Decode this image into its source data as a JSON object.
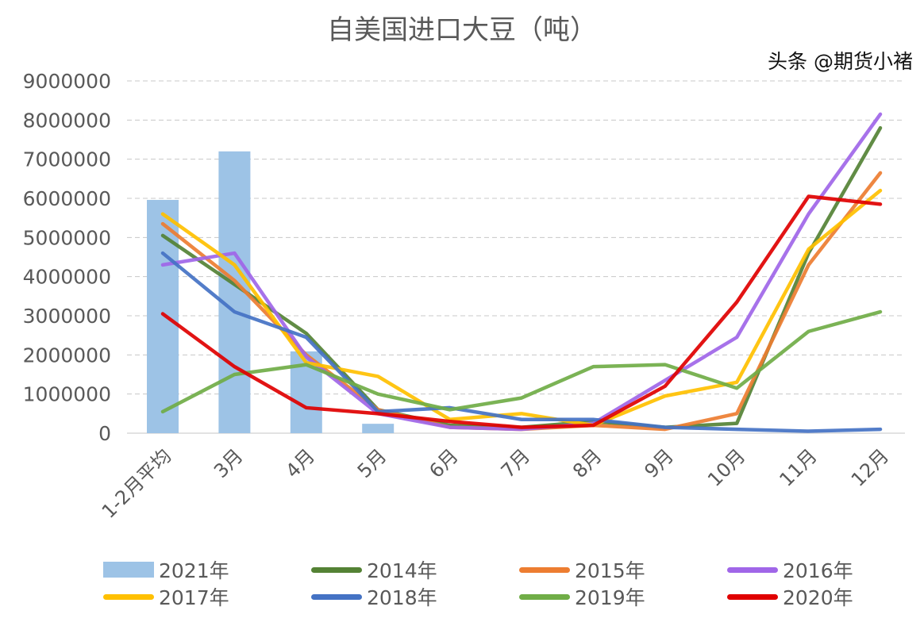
{
  "chart_data": {
    "type": "bar+line",
    "title": "自美国进口大豆（吨）",
    "categories": [
      "1-2月平均",
      "3月",
      "4月",
      "5月",
      "6月",
      "7月",
      "8月",
      "9月",
      "10月",
      "11月",
      "12月"
    ],
    "ylim": [
      0,
      9000000
    ],
    "yticks": [
      "0",
      "1000000",
      "2000000",
      "3000000",
      "4000000",
      "5000000",
      "6000000",
      "7000000",
      "8000000",
      "9000000"
    ],
    "grid": true,
    "legend_position": "bottom",
    "bar_series": {
      "name": "2021年",
      "color": "#9dc3e6",
      "values": [
        5960000,
        7200000,
        2090000,
        240000
      ]
    },
    "series": [
      {
        "name": "2014年",
        "color": "#548235",
        "values": [
          5050000,
          3800000,
          2550000,
          600000,
          200000,
          150000,
          300000,
          150000,
          250000,
          4600000,
          7800000
        ]
      },
      {
        "name": "2015年",
        "color": "#ed7d31",
        "values": [
          5350000,
          3900000,
          2000000,
          600000,
          150000,
          100000,
          200000,
          100000,
          500000,
          4300000,
          6650000
        ]
      },
      {
        "name": "2016年",
        "color": "#a066e8",
        "values": [
          4300000,
          4600000,
          1950000,
          500000,
          150000,
          100000,
          250000,
          1350000,
          2450000,
          5600000,
          8150000
        ]
      },
      {
        "name": "2017年",
        "color": "#ffc000",
        "values": [
          5600000,
          4300000,
          1800000,
          1450000,
          350000,
          500000,
          200000,
          950000,
          1300000,
          4700000,
          6200000
        ]
      },
      {
        "name": "2018年",
        "color": "#4472c4",
        "values": [
          4600000,
          3100000,
          2450000,
          550000,
          650000,
          350000,
          350000,
          150000,
          100000,
          50000,
          100000
        ]
      },
      {
        "name": "2019年",
        "color": "#70ad47",
        "values": [
          550000,
          1500000,
          1750000,
          1000000,
          600000,
          900000,
          1700000,
          1750000,
          1150000,
          2600000,
          3100000
        ]
      },
      {
        "name": "2020年",
        "color": "#e00000",
        "values": [
          3050000,
          1700000,
          650000,
          500000,
          300000,
          150000,
          200000,
          1200000,
          3350000,
          6050000,
          5850000
        ]
      }
    ]
  },
  "watermark": "头条 @期货小褚"
}
